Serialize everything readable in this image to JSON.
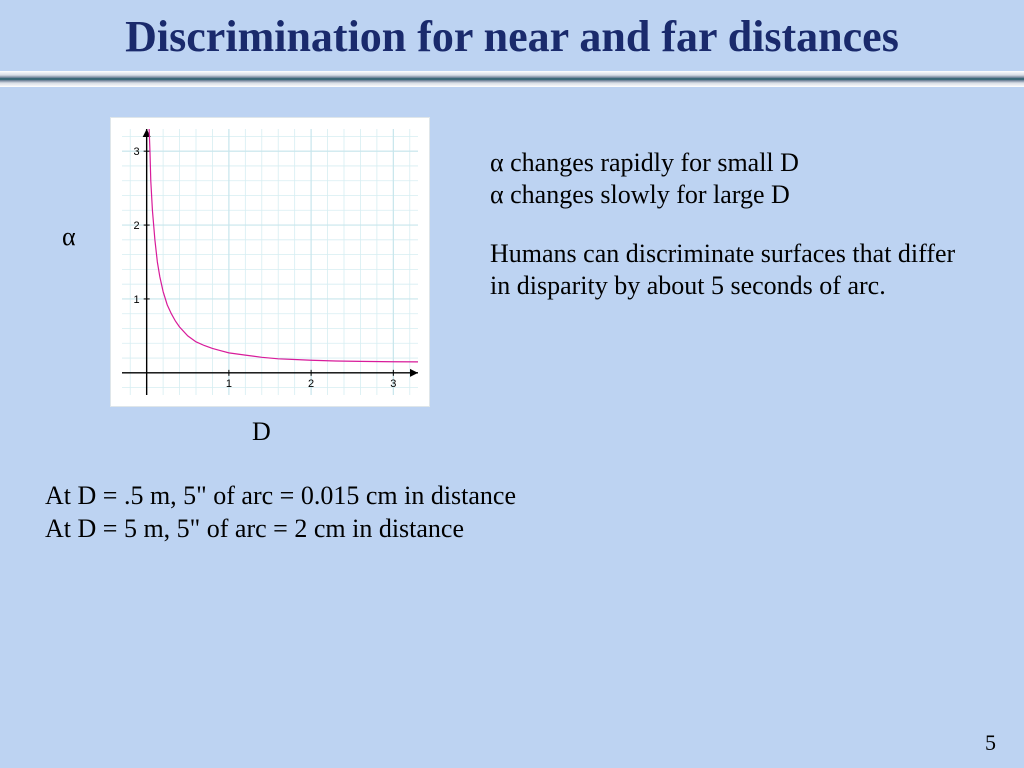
{
  "title": "Discrimination for near and far distances",
  "page_number": "5",
  "chart": {
    "type": "line",
    "ylabel": "α",
    "xlabel": "D",
    "background_color": "#ffffff",
    "grid_color": "#d6eef2",
    "major_grid_color": "#c8e6ec",
    "axis_color": "#000000",
    "line_color": "#d81b9a",
    "line_width": 1.2,
    "xlim": [
      -0.3,
      3.3
    ],
    "ylim": [
      -0.3,
      3.3
    ],
    "xtick_labels": [
      "1",
      "2",
      "3"
    ],
    "ytick_labels": [
      "1",
      "2",
      "3"
    ],
    "xtick_positions": [
      1,
      2,
      3
    ],
    "ytick_positions": [
      1,
      2,
      3
    ],
    "minor_grid_step": 0.2,
    "tick_fontsize": 11,
    "tick_color": "#000000",
    "data": {
      "x": [
        0.03,
        0.04,
        0.05,
        0.07,
        0.1,
        0.13,
        0.16,
        0.2,
        0.25,
        0.3,
        0.35,
        0.4,
        0.5,
        0.6,
        0.7,
        0.8,
        0.9,
        1.0,
        1.2,
        1.4,
        1.6,
        1.8,
        2.0,
        2.3,
        2.6,
        3.0,
        3.3
      ],
      "y": [
        3.3,
        3.0,
        2.6,
        2.2,
        1.8,
        1.5,
        1.3,
        1.1,
        0.92,
        0.8,
        0.7,
        0.62,
        0.5,
        0.42,
        0.37,
        0.33,
        0.3,
        0.27,
        0.24,
        0.21,
        0.19,
        0.18,
        0.17,
        0.16,
        0.155,
        0.15,
        0.148
      ]
    }
  },
  "right_text": {
    "line1": "α changes rapidly for small D",
    "line2": "α changes slowly for large D",
    "para2": "Humans can discriminate surfaces that differ in disparity by about 5 seconds of arc."
  },
  "bottom_text": {
    "line1": "At D = .5 m, 5\" of arc = 0.015 cm in distance",
    "line2": "At D = 5 m, 5\" of arc = 2 cm in distance"
  },
  "colors": {
    "slide_bg": "#bdd3f2",
    "title_color": "#1a2a6c"
  }
}
